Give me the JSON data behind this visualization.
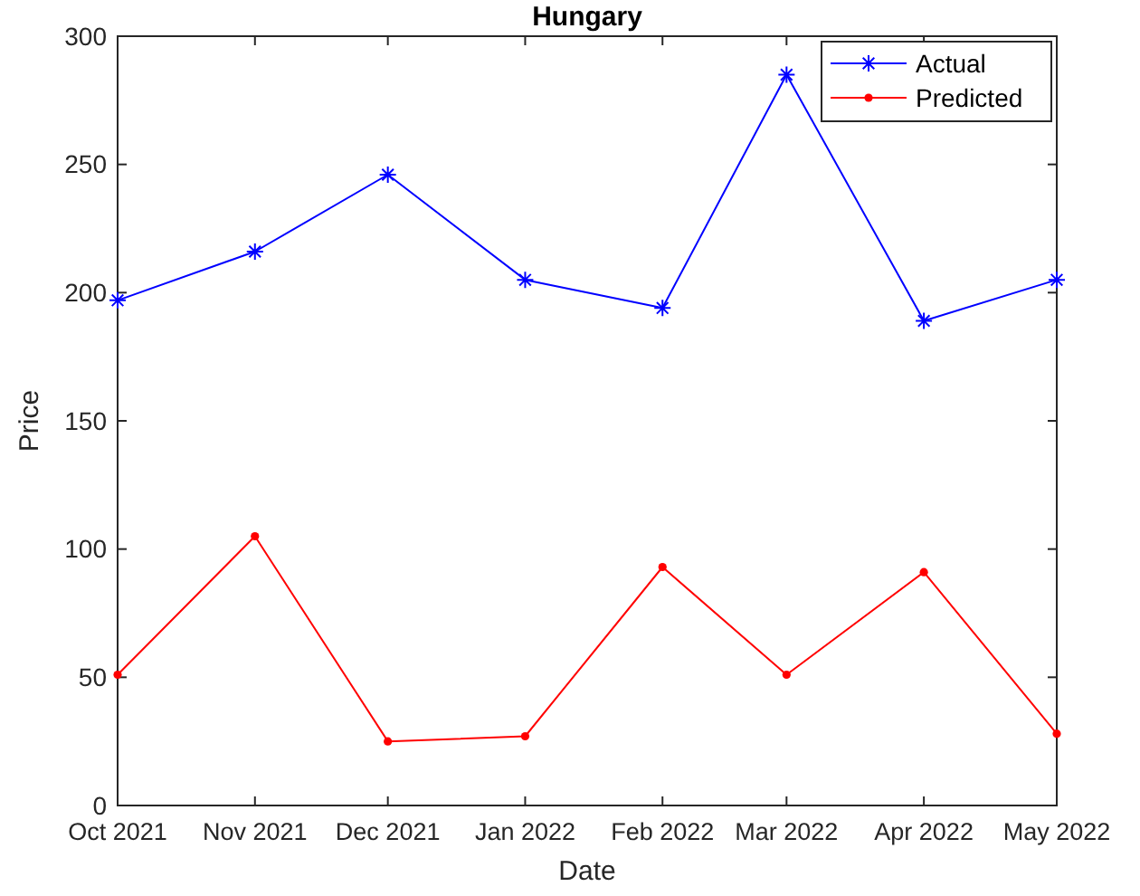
{
  "chart_data": {
    "type": "line",
    "title": "Hungary",
    "xlabel": "Date",
    "ylabel": "Price",
    "x": [
      "2021-10",
      "2021-11",
      "2021-12",
      "2022-01",
      "2022-02",
      "2022-03",
      "2022-04",
      "2022-05"
    ],
    "series": [
      {
        "name": "Actual",
        "color": "#0000ff",
        "marker": "cross",
        "values": [
          197,
          216,
          246,
          205,
          194,
          285,
          189,
          205
        ]
      },
      {
        "name": "Predicted",
        "color": "#ff0000",
        "marker": "circle",
        "values": [
          51,
          105,
          25,
          27,
          93,
          51,
          91,
          28
        ]
      }
    ],
    "xlim": [
      "2021-10",
      "2022-05"
    ],
    "xticks": [
      {
        "value": "2021-10",
        "label": "Oct 2021"
      },
      {
        "value": "2021-11",
        "label": "Nov 2021"
      },
      {
        "value": "2021-12",
        "label": "Dec 2021"
      },
      {
        "value": "2022-01",
        "label": "Jan 2022"
      },
      {
        "value": "2022-02",
        "label": "Feb 2022"
      },
      {
        "value": "2022-03",
        "label": "Mar 2022"
      },
      {
        "value": "2022-04",
        "label": "Apr 2022"
      },
      {
        "value": "2022-05",
        "label": "May 2022"
      }
    ],
    "ylim": [
      0,
      300
    ],
    "yticks": [
      0,
      50,
      100,
      150,
      200,
      250,
      300
    ],
    "grid": false,
    "legend": "top right",
    "line_style": "solid"
  }
}
